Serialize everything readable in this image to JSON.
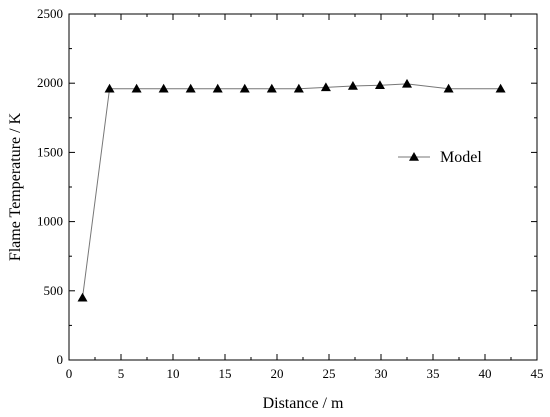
{
  "chart_data": {
    "type": "line",
    "xlabel": "Distance / m",
    "ylabel": "Flame  Temperature / K",
    "xlim": [
      0,
      45
    ],
    "ylim": [
      0,
      2500
    ],
    "xticks": [
      0,
      5,
      10,
      15,
      20,
      25,
      30,
      35,
      40,
      45
    ],
    "yticks": [
      0,
      500,
      1000,
      1500,
      2000,
      2500
    ],
    "grid": false,
    "legend_position": "right",
    "series": [
      {
        "name": "Model",
        "marker": "triangle",
        "x": [
          1.3,
          3.9,
          6.5,
          9.1,
          11.7,
          14.3,
          16.9,
          19.5,
          22.1,
          24.7,
          27.3,
          29.9,
          32.5,
          36.5,
          41.5
        ],
        "y": [
          450,
          1960,
          1960,
          1960,
          1960,
          1960,
          1960,
          1960,
          1960,
          1970,
          1980,
          1985,
          1995,
          1960,
          1960
        ]
      }
    ]
  }
}
